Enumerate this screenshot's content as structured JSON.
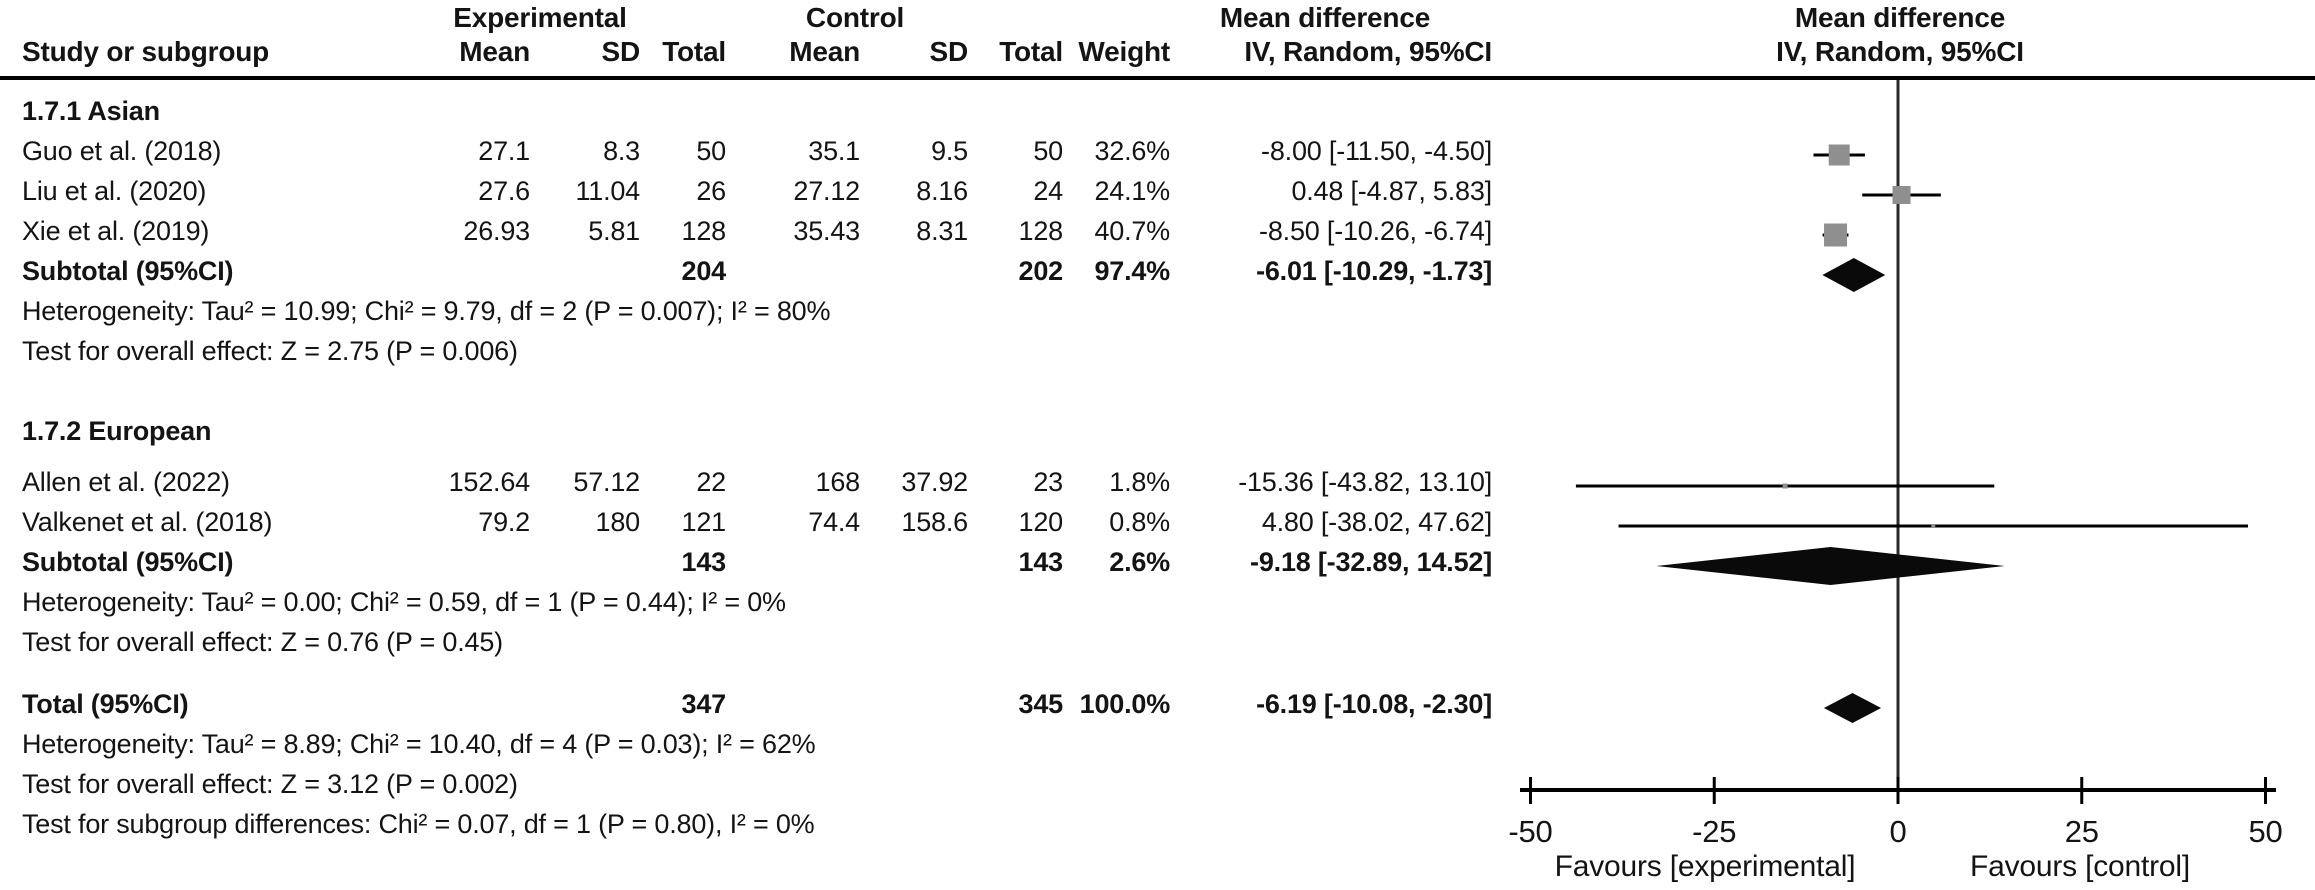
{
  "header": {
    "experimental": "Experimental",
    "control": "Control",
    "mean_difference": "Mean difference",
    "study_or_subgroup": "Study or subgroup",
    "mean": "Mean",
    "sd": "SD",
    "total": "Total",
    "weight": "Weight",
    "method_ci": "IV, Random, 95%CI",
    "mean_difference_plot": "Mean difference",
    "method_ci_plot": "IV, Random, 95%CI"
  },
  "chart_data": {
    "type": "forest",
    "effect_measure": "Mean difference",
    "method": "IV, Random, 95%CI",
    "axis": {
      "min": -50,
      "max": 50,
      "ticks": [
        -50,
        -25,
        0,
        25,
        50
      ],
      "favours_left": "Favours [experimental]",
      "favours_right": "Favours [control]"
    },
    "groups": [
      {
        "name": "1.7.1 Asian",
        "studies": [
          {
            "study": "Guo et al. (2018)",
            "exp_mean": "27.1",
            "exp_sd": "8.3",
            "exp_total": "50",
            "ctrl_mean": "35.1",
            "ctrl_sd": "9.5",
            "ctrl_total": "50",
            "weight": "32.6%",
            "weight_val": 32.6,
            "md": -8.0,
            "lo": -11.5,
            "hi": -4.5,
            "ci_text": "-8.00 [-11.50, -4.50]"
          },
          {
            "study": "Liu et al. (2020)",
            "exp_mean": "27.6",
            "exp_sd": "11.04",
            "exp_total": "26",
            "ctrl_mean": "27.12",
            "ctrl_sd": "8.16",
            "ctrl_total": "24",
            "weight": "24.1%",
            "weight_val": 24.1,
            "md": 0.48,
            "lo": -4.87,
            "hi": 5.83,
            "ci_text": "0.48 [-4.87, 5.83]"
          },
          {
            "study": "Xie et al. (2019)",
            "exp_mean": "26.93",
            "exp_sd": "5.81",
            "exp_total": "128",
            "ctrl_mean": "35.43",
            "ctrl_sd": "8.31",
            "ctrl_total": "128",
            "weight": "40.7%",
            "weight_val": 40.7,
            "md": -8.5,
            "lo": -10.26,
            "hi": -6.74,
            "ci_text": "-8.50 [-10.26, -6.74]"
          }
        ],
        "subtotal": {
          "label": "Subtotal (95%CI)",
          "exp_total": "204",
          "ctrl_total": "202",
          "weight": "97.4%",
          "md": -6.01,
          "lo": -10.29,
          "hi": -1.73,
          "ci_text": "-6.01 [-10.29, -1.73]",
          "diamond_half_height": 17
        },
        "heterogeneity": "Heterogeneity: Tau² = 10.99; Chi² = 9.79, df = 2 (P = 0.007); I² = 80%",
        "overall_effect": "Test for overall effect: Z = 2.75 (P = 0.006)"
      },
      {
        "name": "1.7.2 European",
        "studies": [
          {
            "study": "Allen et al. (2022)",
            "exp_mean": "152.64",
            "exp_sd": "57.12",
            "exp_total": "22",
            "ctrl_mean": "168",
            "ctrl_sd": "37.92",
            "ctrl_total": "23",
            "weight": "1.8%",
            "weight_val": 1.8,
            "md": -15.36,
            "lo": -43.82,
            "hi": 13.1,
            "ci_text": "-15.36 [-43.82, 13.10]"
          },
          {
            "study": "Valkenet et al. (2018)",
            "exp_mean": "79.2",
            "exp_sd": "180",
            "exp_total": "121",
            "ctrl_mean": "74.4",
            "ctrl_sd": "158.6",
            "ctrl_total": "120",
            "weight": "0.8%",
            "weight_val": 0.8,
            "md": 4.8,
            "lo": -38.02,
            "hi": 47.62,
            "ci_text": "4.80 [-38.02, 47.62]"
          }
        ],
        "subtotal": {
          "label": "Subtotal (95%CI)",
          "exp_total": "143",
          "ctrl_total": "143",
          "weight": "2.6%",
          "md": -9.18,
          "lo": -32.89,
          "hi": 14.52,
          "ci_text": "-9.18 [-32.89, 14.52]",
          "diamond_half_height": 19
        },
        "heterogeneity": "Heterogeneity: Tau² = 0.00; Chi² = 0.59, df = 1 (P = 0.44); I² = 0%",
        "overall_effect": "Test for overall effect: Z = 0.76 (P = 0.45)"
      }
    ],
    "total": {
      "label": "Total (95%CI)",
      "exp_total": "347",
      "ctrl_total": "345",
      "weight": "100.0%",
      "md": -6.19,
      "lo": -10.08,
      "hi": -2.3,
      "ci_text": "-6.19 [-10.08, -2.30]",
      "diamond_half_height": 15
    },
    "total_heterogeneity": "Heterogeneity: Tau² = 8.89; Chi² = 10.40, df = 4 (P = 0.03); I² = 62%",
    "total_overall_effect": "Test for overall effect: Z = 3.12 (P = 0.002)",
    "subgroup_differences": "Test for subgroup differences: Chi² = 0.07, df = 1 (P = 0.80), I² = 0%",
    "colors": {
      "square": "#8f8f8f",
      "ci_line": "#000000",
      "diamond": "#0a0a0a",
      "zero_line": "#2a2a2a",
      "axis": "#000000",
      "text": "#141414"
    }
  }
}
